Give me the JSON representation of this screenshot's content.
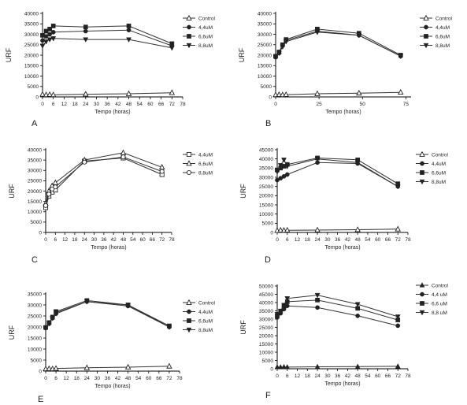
{
  "chart_data": [
    {
      "panel": "A",
      "type": "line",
      "xlabel": "Tempo (horas)",
      "ylabel": "URF",
      "xticks": [
        0,
        6,
        12,
        18,
        24,
        30,
        36,
        42,
        48,
        54,
        60,
        66,
        72,
        78
      ],
      "yticks": [
        0,
        5000,
        10000,
        15000,
        20000,
        25000,
        30000,
        35000,
        40000
      ],
      "xlim": [
        0,
        78
      ],
      "ylim": [
        0,
        40000
      ],
      "series": [
        {
          "name": "Control",
          "marker": "triangle-open",
          "x": [
            0,
            2,
            4,
            6,
            24,
            48,
            72
          ],
          "y": [
            1200,
            1000,
            1100,
            1000,
            1300,
            1500,
            2000
          ]
        },
        {
          "name": "4,4uM",
          "marker": "circle",
          "x": [
            0,
            2,
            4,
            6,
            24,
            48,
            72
          ],
          "y": [
            27000,
            29000,
            30000,
            31000,
            31500,
            32000,
            24500
          ]
        },
        {
          "name": "6,6uM",
          "marker": "square",
          "x": [
            0,
            2,
            4,
            6,
            24,
            48,
            72
          ],
          "y": [
            29500,
            31500,
            32500,
            34000,
            33500,
            34000,
            25500
          ]
        },
        {
          "name": "8,8uM",
          "marker": "triangle-down",
          "x": [
            0,
            2,
            4,
            6,
            24,
            48,
            72
          ],
          "y": [
            24500,
            26500,
            27500,
            28000,
            27500,
            27500,
            23500
          ]
        }
      ]
    },
    {
      "panel": "B",
      "type": "line",
      "xlabel": "Tempo (horas)",
      "ylabel": "URF",
      "xticks": [
        0,
        25,
        50,
        75
      ],
      "yticks": [
        0,
        5000,
        10000,
        15000,
        20000,
        25000,
        30000,
        35000,
        40000
      ],
      "xlim": [
        0,
        78
      ],
      "ylim": [
        0,
        40000
      ],
      "series": [
        {
          "name": "Control",
          "marker": "triangle-open",
          "x": [
            0,
            2,
            4,
            6,
            24,
            48,
            72
          ],
          "y": [
            1000,
            1100,
            1000,
            1100,
            1500,
            1800,
            2200
          ]
        },
        {
          "name": "4,4uM",
          "marker": "circle",
          "x": [
            0,
            2,
            4,
            6,
            24,
            48,
            72
          ],
          "y": [
            19000,
            21000,
            24500,
            27000,
            31500,
            29500,
            19500
          ]
        },
        {
          "name": "6,6uM",
          "marker": "square",
          "x": [
            0,
            2,
            4,
            6,
            24,
            48,
            72
          ],
          "y": [
            19500,
            21500,
            25000,
            27500,
            32500,
            30500,
            20000
          ]
        },
        {
          "name": "8,8uM",
          "marker": "triangle-down",
          "x": [
            0,
            2,
            4,
            6,
            24,
            48,
            72
          ],
          "y": [
            19000,
            21000,
            24000,
            26500,
            31000,
            29500,
            19500
          ]
        }
      ]
    },
    {
      "panel": "C",
      "type": "line",
      "xlabel": "Tempo (horas)",
      "ylabel": "URF",
      "xticks": [
        0,
        6,
        12,
        18,
        24,
        30,
        36,
        42,
        48,
        54,
        60,
        66,
        72,
        78
      ],
      "yticks": [
        0,
        5000,
        10000,
        15000,
        20000,
        25000,
        30000,
        35000,
        40000
      ],
      "xlim": [
        0,
        78
      ],
      "ylim": [
        0,
        40000
      ],
      "series": [
        {
          "name": "4,4uM",
          "marker": "square-open",
          "x": [
            0,
            2,
            4,
            6,
            24,
            48,
            72
          ],
          "y": [
            12000,
            17500,
            19500,
            20500,
            34500,
            36000,
            28000
          ]
        },
        {
          "name": "6,6uM",
          "marker": "triangle-open",
          "x": [
            0,
            2,
            4,
            6,
            24,
            48,
            72
          ],
          "y": [
            14000,
            20000,
            22500,
            24000,
            35000,
            38500,
            31500
          ]
        },
        {
          "name": "8,8uM",
          "marker": "circle-open",
          "x": [
            0,
            2,
            4,
            6,
            24,
            48,
            72
          ],
          "y": [
            13000,
            18500,
            21000,
            22000,
            34000,
            36500,
            29500
          ]
        }
      ]
    },
    {
      "panel": "D",
      "type": "line",
      "xlabel": "Tempo (horas)",
      "ylabel": "URF",
      "xticks": [
        0,
        6,
        12,
        18,
        24,
        30,
        36,
        42,
        48,
        54,
        60,
        66,
        72,
        78
      ],
      "yticks": [
        0,
        5000,
        10000,
        15000,
        20000,
        25000,
        30000,
        35000,
        40000,
        45000
      ],
      "xlim": [
        0,
        78
      ],
      "ylim": [
        0,
        45000
      ],
      "series": [
        {
          "name": "Control",
          "marker": "triangle-open",
          "x": [
            0,
            2,
            4,
            6,
            24,
            48,
            72
          ],
          "y": [
            1000,
            1200,
            1100,
            1200,
            1300,
            1500,
            1800
          ]
        },
        {
          "name": "4,4uM",
          "marker": "circle",
          "x": [
            0,
            2,
            4,
            6,
            24,
            48,
            72
          ],
          "y": [
            28500,
            29500,
            30500,
            31500,
            38000,
            37500,
            25000
          ]
        },
        {
          "name": "6,6uM",
          "marker": "square",
          "x": [
            0,
            2,
            4,
            6,
            24,
            48,
            72
          ],
          "y": [
            34000,
            35000,
            36000,
            37000,
            40500,
            39500,
            26500
          ]
        },
        {
          "name": "8,8uM",
          "marker": "triangle-down",
          "x": [
            0,
            2,
            4,
            6,
            24,
            48,
            72
          ],
          "y": [
            33000,
            36500,
            39500,
            36000,
            40000,
            38000,
            25000
          ]
        }
      ]
    },
    {
      "panel": "E",
      "type": "line",
      "xlabel": "Tempo (horas)",
      "ylabel": "URF",
      "xticks": [
        0,
        6,
        12,
        18,
        24,
        30,
        36,
        42,
        48,
        54,
        60,
        66,
        72,
        78
      ],
      "yticks": [
        0,
        5000,
        10000,
        15000,
        20000,
        25000,
        30000,
        35000
      ],
      "xlim": [
        0,
        78
      ],
      "ylim": [
        0,
        35000
      ],
      "series": [
        {
          "name": "Control",
          "marker": "triangle-open",
          "x": [
            0,
            2,
            4,
            6,
            24,
            48,
            72
          ],
          "y": [
            1000,
            1100,
            1000,
            1200,
            1500,
            1800,
            2200
          ]
        },
        {
          "name": "4,4uM",
          "marker": "circle",
          "x": [
            0,
            2,
            4,
            6,
            24,
            48,
            72
          ],
          "y": [
            19500,
            21500,
            24000,
            26000,
            31500,
            29500,
            20000
          ]
        },
        {
          "name": "6,6uM",
          "marker": "square",
          "x": [
            0,
            2,
            4,
            6,
            24,
            48,
            72
          ],
          "y": [
            19800,
            22000,
            24500,
            27000,
            32000,
            30000,
            20500
          ]
        },
        {
          "name": "8,8uM",
          "marker": "triangle-down",
          "x": [
            0,
            2,
            4,
            6,
            24,
            48,
            72
          ],
          "y": [
            19500,
            21500,
            24000,
            26500,
            31500,
            30000,
            20000
          ]
        }
      ]
    },
    {
      "panel": "F",
      "type": "line",
      "xlabel": "Tempo (horas)",
      "ylabel": "URF",
      "xticks": [
        0,
        6,
        12,
        18,
        24,
        30,
        36,
        42,
        48,
        54,
        60,
        66,
        72,
        78
      ],
      "yticks": [
        0,
        5000,
        10000,
        15000,
        20000,
        25000,
        30000,
        35000,
        40000,
        45000,
        50000
      ],
      "xlim": [
        0,
        78
      ],
      "ylim": [
        0,
        50000
      ],
      "series": [
        {
          "name": "Control",
          "marker": "triangle",
          "x": [
            0,
            2,
            4,
            6,
            24,
            48,
            72
          ],
          "y": [
            1000,
            1000,
            1100,
            1000,
            1200,
            1300,
            1500
          ]
        },
        {
          "name": "4,4 uM",
          "marker": "circle",
          "x": [
            0,
            2,
            4,
            6,
            24,
            48,
            72
          ],
          "y": [
            31000,
            33500,
            36000,
            38000,
            37000,
            32000,
            26000
          ]
        },
        {
          "name": "6,6 uM",
          "marker": "square",
          "x": [
            0,
            2,
            4,
            6,
            24,
            48,
            72
          ],
          "y": [
            32000,
            34500,
            37500,
            40500,
            41500,
            36500,
            29500
          ]
        },
        {
          "name": "8,8 uM",
          "marker": "triangle-down",
          "x": [
            0,
            2,
            4,
            6,
            24,
            48,
            72
          ],
          "y": [
            33000,
            35000,
            38500,
            42500,
            44500,
            39000,
            31500
          ]
        }
      ]
    }
  ]
}
